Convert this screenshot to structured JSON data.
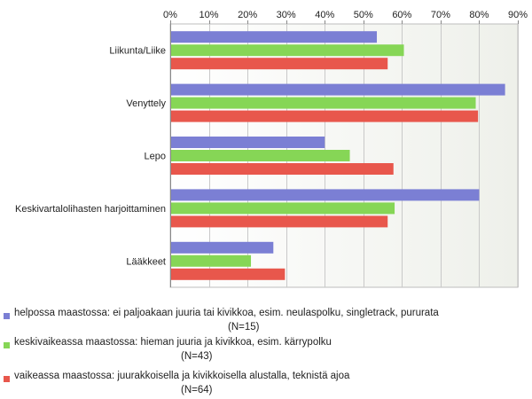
{
  "chart_data": {
    "type": "bar",
    "orientation": "horizontal",
    "categories": [
      "Liikunta/Liike",
      "Venyttely",
      "Lepo",
      "Keskivartalolihasten harjoittaminen",
      "Lääkkeet"
    ],
    "series": [
      {
        "name": "helpossa maastossa: ei paljoakaan juuria tai kivikkoa, esim. neulaspolku, singletrack, pururata",
        "n_label": "(N=15)",
        "color": "#7b7fd4",
        "values": [
          53.5,
          86.7,
          40.0,
          80.0,
          26.7
        ]
      },
      {
        "name": "keskivaikeassa maastossa: hieman juuria ja kivikkoa, esim. kärrypolku",
        "n_label": "(N=43)",
        "color": "#86d656",
        "values": [
          60.5,
          79.1,
          46.5,
          58.1,
          20.9
        ]
      },
      {
        "name": "vaikeassa maastossa: juurakkoisella ja kivikkoisella alustalla, teknistä ajoa",
        "n_label": "(N=64)",
        "color": "#e8574c",
        "values": [
          56.3,
          79.7,
          57.8,
          56.3,
          29.7
        ]
      }
    ],
    "xlim": [
      0,
      90
    ],
    "ticks": [
      0,
      10,
      20,
      30,
      40,
      50,
      60,
      70,
      80,
      90
    ],
    "tick_labels": [
      "0%",
      "10%",
      "20%",
      "30%",
      "40%",
      "50%",
      "60%",
      "70%",
      "80%",
      "90%"
    ],
    "grid": true,
    "legend_position": "bottom"
  }
}
